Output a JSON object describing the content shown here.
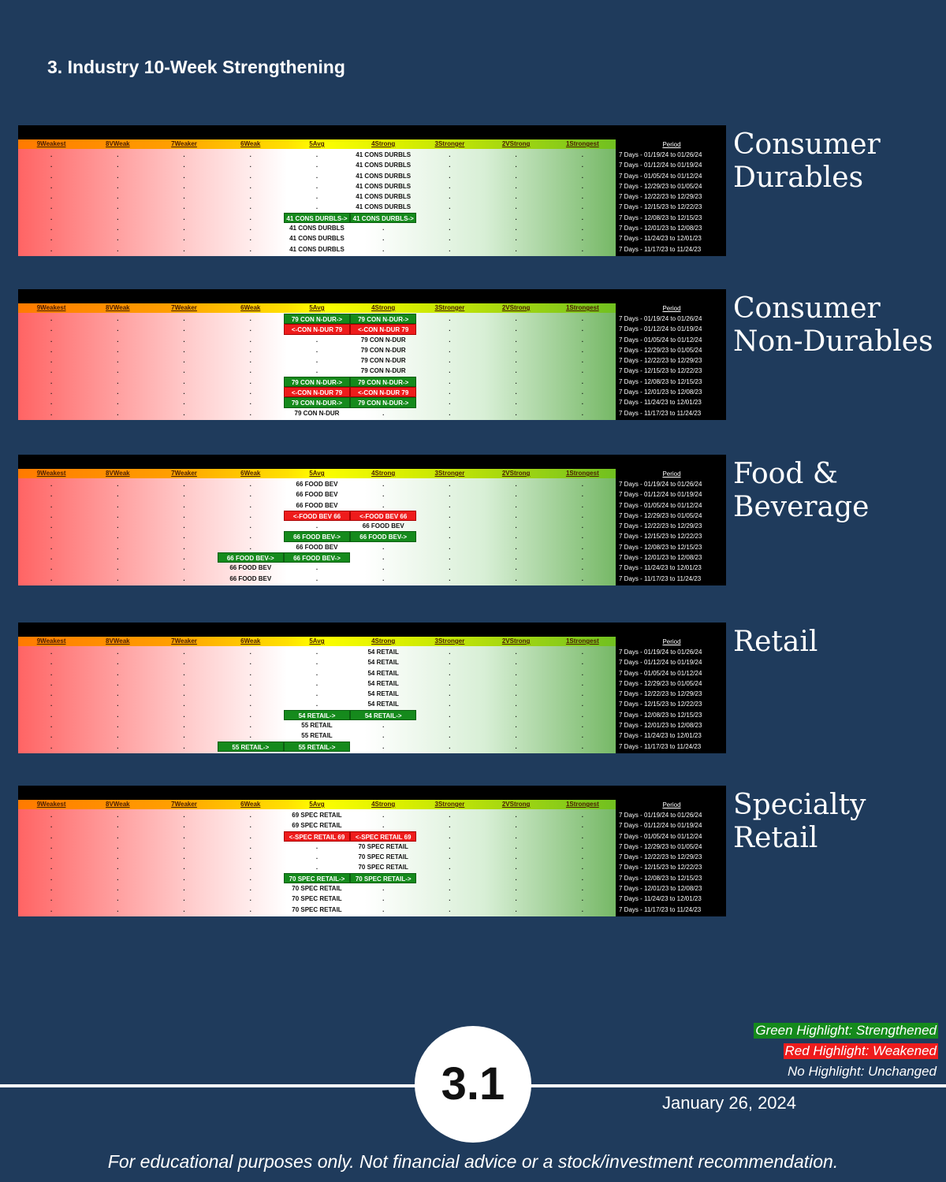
{
  "page_title": "3. Industry 10-Week Strengthening",
  "column_headers": [
    "9Weakest",
    "8VWeak",
    "7Weaker",
    "6Weak",
    "5Avg",
    "4Strong",
    "3Stronger",
    "2VStrong",
    "1Strongest"
  ],
  "period_header": "Period",
  "periods": [
    "7 Days - 01/19/24 to 01/26/24",
    "7 Days - 01/12/24 to 01/19/24",
    "7 Days - 01/05/24 to 01/12/24",
    "7 Days - 12/29/23 to 01/05/24",
    "7 Days - 12/22/23 to 12/29/23",
    "7 Days - 12/15/23 to 12/22/23",
    "7 Days - 12/08/23 to 12/15/23",
    "7 Days - 12/01/23 to 12/08/23",
    "7 Days - 11/24/23 to 12/01/23",
    "7 Days - 11/17/23 to 11/24/23"
  ],
  "colors": {
    "background": "#1f3b5c",
    "green_highlight": "#158a1c",
    "red_highlight": "#ee1c1c"
  },
  "panels": [
    {
      "sector_line1": "Consumer",
      "sector_line2": "Durables",
      "rows": [
        [
          ".",
          ".",
          ".",
          ".",
          ".",
          "41 CONS DURBLS",
          ".",
          ".",
          "."
        ],
        [
          ".",
          ".",
          ".",
          ".",
          ".",
          "41 CONS DURBLS",
          ".",
          ".",
          "."
        ],
        [
          ".",
          ".",
          ".",
          ".",
          ".",
          "41 CONS DURBLS",
          ".",
          ".",
          "."
        ],
        [
          ".",
          ".",
          ".",
          ".",
          ".",
          "41 CONS DURBLS",
          ".",
          ".",
          "."
        ],
        [
          ".",
          ".",
          ".",
          ".",
          ".",
          "41 CONS DURBLS",
          ".",
          ".",
          "."
        ],
        [
          ".",
          ".",
          ".",
          ".",
          ".",
          "41 CONS DURBLS",
          ".",
          ".",
          "."
        ],
        [
          ".",
          ".",
          ".",
          ".",
          "41 CONS DURBLS->",
          "41 CONS DURBLS->",
          ".",
          ".",
          "."
        ],
        [
          ".",
          ".",
          ".",
          ".",
          "41 CONS DURBLS",
          ".",
          ".",
          ".",
          "."
        ],
        [
          ".",
          ".",
          ".",
          ".",
          "41 CONS DURBLS",
          ".",
          ".",
          ".",
          "."
        ],
        [
          ".",
          ".",
          ".",
          ".",
          "41 CONS DURBLS",
          ".",
          ".",
          ".",
          "."
        ]
      ],
      "highlights": [
        [
          "",
          "",
          "",
          "",
          "",
          "",
          "",
          "",
          ""
        ],
        [
          "",
          "",
          "",
          "",
          "",
          "",
          "",
          "",
          ""
        ],
        [
          "",
          "",
          "",
          "",
          "",
          "",
          "",
          "",
          ""
        ],
        [
          "",
          "",
          "",
          "",
          "",
          "",
          "",
          "",
          ""
        ],
        [
          "",
          "",
          "",
          "",
          "",
          "",
          "",
          "",
          ""
        ],
        [
          "",
          "",
          "",
          "",
          "",
          "",
          "",
          "",
          ""
        ],
        [
          "",
          "",
          "",
          "",
          "g",
          "g",
          "",
          "",
          ""
        ],
        [
          "",
          "",
          "",
          "",
          "",
          "",
          "",
          "",
          ""
        ],
        [
          "",
          "",
          "",
          "",
          "",
          "",
          "",
          "",
          ""
        ],
        [
          "",
          "",
          "",
          "",
          "",
          "",
          "",
          "",
          ""
        ]
      ]
    },
    {
      "sector_line1": "Consumer",
      "sector_line2": "Non-Durables",
      "rows": [
        [
          ".",
          ".",
          ".",
          ".",
          "79 CON N-DUR->",
          "79 CON N-DUR->",
          ".",
          ".",
          "."
        ],
        [
          ".",
          ".",
          ".",
          ".",
          "<-CON N-DUR 79",
          "<-CON N-DUR 79",
          ".",
          ".",
          "."
        ],
        [
          ".",
          ".",
          ".",
          ".",
          ".",
          "79 CON N-DUR",
          ".",
          ".",
          "."
        ],
        [
          ".",
          ".",
          ".",
          ".",
          ".",
          "79 CON N-DUR",
          ".",
          ".",
          "."
        ],
        [
          ".",
          ".",
          ".",
          ".",
          ".",
          "79 CON N-DUR",
          ".",
          ".",
          "."
        ],
        [
          ".",
          ".",
          ".",
          ".",
          ".",
          "79 CON N-DUR",
          ".",
          ".",
          "."
        ],
        [
          ".",
          ".",
          ".",
          ".",
          "79 CON N-DUR->",
          "79 CON N-DUR->",
          ".",
          ".",
          "."
        ],
        [
          ".",
          ".",
          ".",
          ".",
          "<-CON N-DUR 79",
          "<-CON N-DUR 79",
          ".",
          ".",
          "."
        ],
        [
          ".",
          ".",
          ".",
          ".",
          "79 CON N-DUR->",
          "79 CON N-DUR->",
          ".",
          ".",
          "."
        ],
        [
          ".",
          ".",
          ".",
          ".",
          "79 CON N-DUR",
          ".",
          ".",
          ".",
          "."
        ]
      ],
      "highlights": [
        [
          "",
          "",
          "",
          "",
          "g",
          "g",
          "",
          "",
          ""
        ],
        [
          "",
          "",
          "",
          "",
          "r",
          "r",
          "",
          "",
          ""
        ],
        [
          "",
          "",
          "",
          "",
          "",
          "",
          "",
          "",
          ""
        ],
        [
          "",
          "",
          "",
          "",
          "",
          "",
          "",
          "",
          ""
        ],
        [
          "",
          "",
          "",
          "",
          "",
          "",
          "",
          "",
          ""
        ],
        [
          "",
          "",
          "",
          "",
          "",
          "",
          "",
          "",
          ""
        ],
        [
          "",
          "",
          "",
          "",
          "g",
          "g",
          "",
          "",
          ""
        ],
        [
          "",
          "",
          "",
          "",
          "r",
          "r",
          "",
          "",
          ""
        ],
        [
          "",
          "",
          "",
          "",
          "g",
          "g",
          "",
          "",
          ""
        ],
        [
          "",
          "",
          "",
          "",
          "",
          "",
          "",
          "",
          ""
        ]
      ]
    },
    {
      "sector_line1": "Food &",
      "sector_line2": "Beverage",
      "rows": [
        [
          ".",
          ".",
          ".",
          ".",
          "66 FOOD BEV",
          ".",
          ".",
          ".",
          "."
        ],
        [
          ".",
          ".",
          ".",
          ".",
          "66 FOOD BEV",
          ".",
          ".",
          ".",
          "."
        ],
        [
          ".",
          ".",
          ".",
          ".",
          "66 FOOD BEV",
          ".",
          ".",
          ".",
          "."
        ],
        [
          ".",
          ".",
          ".",
          ".",
          "<-FOOD BEV 66",
          "<-FOOD BEV 66",
          ".",
          ".",
          "."
        ],
        [
          ".",
          ".",
          ".",
          ".",
          ".",
          "66 FOOD BEV",
          ".",
          ".",
          "."
        ],
        [
          ".",
          ".",
          ".",
          ".",
          "66 FOOD BEV->",
          "66 FOOD BEV->",
          ".",
          ".",
          "."
        ],
        [
          ".",
          ".",
          ".",
          ".",
          "66 FOOD BEV",
          ".",
          ".",
          ".",
          "."
        ],
        [
          ".",
          ".",
          ".",
          "66 FOOD BEV->",
          "66 FOOD BEV->",
          ".",
          ".",
          ".",
          "."
        ],
        [
          ".",
          ".",
          ".",
          "66 FOOD BEV",
          ".",
          ".",
          ".",
          ".",
          "."
        ],
        [
          ".",
          ".",
          ".",
          "66 FOOD BEV",
          ".",
          ".",
          ".",
          ".",
          "."
        ]
      ],
      "highlights": [
        [
          "",
          "",
          "",
          "",
          "",
          "",
          "",
          "",
          ""
        ],
        [
          "",
          "",
          "",
          "",
          "",
          "",
          "",
          "",
          ""
        ],
        [
          "",
          "",
          "",
          "",
          "",
          "",
          "",
          "",
          ""
        ],
        [
          "",
          "",
          "",
          "",
          "r",
          "r",
          "",
          "",
          ""
        ],
        [
          "",
          "",
          "",
          "",
          "",
          "",
          "",
          "",
          ""
        ],
        [
          "",
          "",
          "",
          "",
          "g",
          "g",
          "",
          "",
          ""
        ],
        [
          "",
          "",
          "",
          "",
          "",
          "",
          "",
          "",
          ""
        ],
        [
          "",
          "",
          "",
          "g",
          "g",
          "",
          "",
          "",
          ""
        ],
        [
          "",
          "",
          "",
          "",
          "",
          "",
          "",
          "",
          ""
        ],
        [
          "",
          "",
          "",
          "",
          "",
          "",
          "",
          "",
          ""
        ]
      ]
    },
    {
      "sector_line1": "Retail",
      "sector_line2": "",
      "rows": [
        [
          ".",
          ".",
          ".",
          ".",
          ".",
          "54 RETAIL",
          ".",
          ".",
          "."
        ],
        [
          ".",
          ".",
          ".",
          ".",
          ".",
          "54 RETAIL",
          ".",
          ".",
          "."
        ],
        [
          ".",
          ".",
          ".",
          ".",
          ".",
          "54 RETAIL",
          ".",
          ".",
          "."
        ],
        [
          ".",
          ".",
          ".",
          ".",
          ".",
          "54 RETAIL",
          ".",
          ".",
          "."
        ],
        [
          ".",
          ".",
          ".",
          ".",
          ".",
          "54 RETAIL",
          ".",
          ".",
          "."
        ],
        [
          ".",
          ".",
          ".",
          ".",
          ".",
          "54 RETAIL",
          ".",
          ".",
          "."
        ],
        [
          ".",
          ".",
          ".",
          ".",
          "54 RETAIL->",
          "54 RETAIL->",
          ".",
          ".",
          "."
        ],
        [
          ".",
          ".",
          ".",
          ".",
          "55 RETAIL",
          ".",
          ".",
          ".",
          "."
        ],
        [
          ".",
          ".",
          ".",
          ".",
          "55 RETAIL",
          ".",
          ".",
          ".",
          "."
        ],
        [
          ".",
          ".",
          ".",
          "55 RETAIL->",
          "55 RETAIL->",
          ".",
          ".",
          ".",
          "."
        ]
      ],
      "highlights": [
        [
          "",
          "",
          "",
          "",
          "",
          "",
          "",
          "",
          ""
        ],
        [
          "",
          "",
          "",
          "",
          "",
          "",
          "",
          "",
          ""
        ],
        [
          "",
          "",
          "",
          "",
          "",
          "",
          "",
          "",
          ""
        ],
        [
          "",
          "",
          "",
          "",
          "",
          "",
          "",
          "",
          ""
        ],
        [
          "",
          "",
          "",
          "",
          "",
          "",
          "",
          "",
          ""
        ],
        [
          "",
          "",
          "",
          "",
          "",
          "",
          "",
          "",
          ""
        ],
        [
          "",
          "",
          "",
          "",
          "g",
          "g",
          "",
          "",
          ""
        ],
        [
          "",
          "",
          "",
          "",
          "",
          "",
          "",
          "",
          ""
        ],
        [
          "",
          "",
          "",
          "",
          "",
          "",
          "",
          "",
          ""
        ],
        [
          "",
          "",
          "",
          "g",
          "g",
          "",
          "",
          "",
          ""
        ]
      ]
    },
    {
      "sector_line1": "Specialty",
      "sector_line2": "Retail",
      "rows": [
        [
          ".",
          ".",
          ".",
          ".",
          "69 SPEC RETAIL",
          ".",
          ".",
          ".",
          "."
        ],
        [
          ".",
          ".",
          ".",
          ".",
          "69 SPEC RETAIL",
          ".",
          ".",
          ".",
          "."
        ],
        [
          ".",
          ".",
          ".",
          ".",
          "<-SPEC RETAIL 69",
          "<-SPEC RETAIL 69",
          ".",
          ".",
          "."
        ],
        [
          ".",
          ".",
          ".",
          ".",
          ".",
          "70 SPEC RETAIL",
          ".",
          ".",
          "."
        ],
        [
          ".",
          ".",
          ".",
          ".",
          ".",
          "70 SPEC RETAIL",
          ".",
          ".",
          "."
        ],
        [
          ".",
          ".",
          ".",
          ".",
          ".",
          "70 SPEC RETAIL",
          ".",
          ".",
          "."
        ],
        [
          ".",
          ".",
          ".",
          ".",
          "70 SPEC RETAIL->",
          "70 SPEC RETAIL->",
          ".",
          ".",
          "."
        ],
        [
          ".",
          ".",
          ".",
          ".",
          "70 SPEC RETAIL",
          ".",
          ".",
          ".",
          "."
        ],
        [
          ".",
          ".",
          ".",
          ".",
          "70 SPEC RETAIL",
          ".",
          ".",
          ".",
          "."
        ],
        [
          ".",
          ".",
          ".",
          ".",
          "70 SPEC RETAIL",
          ".",
          ".",
          ".",
          "."
        ]
      ],
      "highlights": [
        [
          "",
          "",
          "",
          "",
          "",
          "",
          "",
          "",
          ""
        ],
        [
          "",
          "",
          "",
          "",
          "",
          "",
          "",
          "",
          ""
        ],
        [
          "",
          "",
          "",
          "",
          "r",
          "r",
          "",
          "",
          ""
        ],
        [
          "",
          "",
          "",
          "",
          "",
          "",
          "",
          "",
          ""
        ],
        [
          "",
          "",
          "",
          "",
          "",
          "",
          "",
          "",
          ""
        ],
        [
          "",
          "",
          "",
          "",
          "",
          "",
          "",
          "",
          ""
        ],
        [
          "",
          "",
          "",
          "",
          "g",
          "g",
          "",
          "",
          ""
        ],
        [
          "",
          "",
          "",
          "",
          "",
          "",
          "",
          "",
          ""
        ],
        [
          "",
          "",
          "",
          "",
          "",
          "",
          "",
          "",
          ""
        ],
        [
          "",
          "",
          "",
          "",
          "",
          "",
          "",
          "",
          ""
        ]
      ]
    }
  ],
  "legend": {
    "green": "Green Highlight: Strengthened",
    "red": "Red Highlight: Weakened",
    "none": "No Highlight: Unchanged"
  },
  "page_number": "3.1",
  "date": "January 26, 2024",
  "disclaimer": "For educational purposes only. Not financial advice or a stock/investment recommendation."
}
